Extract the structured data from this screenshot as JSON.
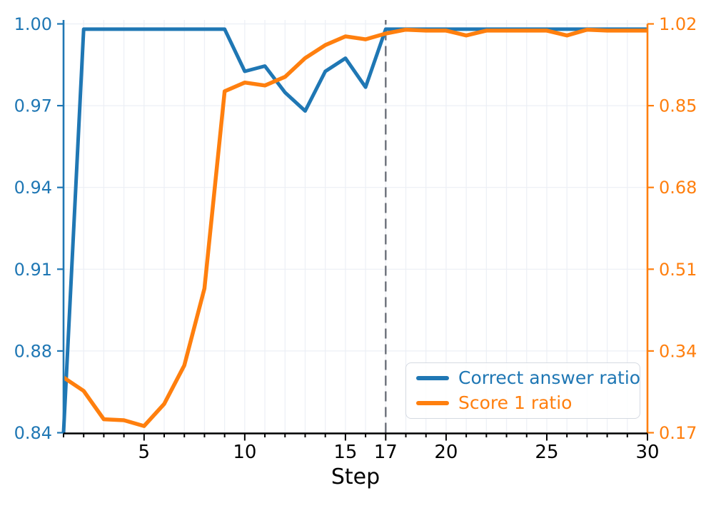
{
  "chart_data": {
    "type": "line",
    "title": "",
    "xlabel": "Step",
    "grid": true,
    "x": [
      1,
      2,
      3,
      4,
      5,
      6,
      7,
      8,
      9,
      10,
      11,
      12,
      13,
      14,
      15,
      16,
      17,
      18,
      19,
      20,
      21,
      22,
      23,
      24,
      25,
      26,
      27,
      28,
      29,
      30
    ],
    "xlim": [
      1,
      30
    ],
    "x_major_ticks": [
      5,
      10,
      15,
      17,
      20,
      25,
      30
    ],
    "x_tick_labels": [
      "5",
      "10",
      "15",
      "17",
      "20",
      "25",
      "30"
    ],
    "x_minor_tick_every": 1,
    "vline": {
      "x": 17,
      "style": "dashed",
      "color": "#6b7079"
    },
    "left_axis": {
      "ylim": [
        0.845,
        1.0
      ],
      "tick_labels_top_to_bottom": [
        "1.00",
        "0.97",
        "0.94",
        "0.91",
        "0.88",
        "0.84"
      ],
      "color": "#1f77b4"
    },
    "right_axis": {
      "ylim": [
        0.17,
        1.02
      ],
      "tick_labels_top_to_bottom": [
        "1.02",
        "0.85",
        "0.68",
        "0.51",
        "0.34",
        "0.17"
      ],
      "color": "#ff7f0e"
    },
    "legend": {
      "location": "lower right"
    },
    "series": [
      {
        "name": "Correct answer ratio",
        "color": "#1f77b4",
        "axis": "left",
        "values": [
          0.845,
          0.998,
          0.998,
          0.998,
          0.998,
          0.998,
          0.998,
          0.998,
          0.998,
          0.982,
          0.984,
          0.974,
          0.967,
          0.982,
          0.987,
          0.976,
          0.998,
          0.998,
          0.998,
          0.998,
          0.998,
          0.998,
          0.998,
          0.998,
          0.998,
          0.998,
          0.998,
          0.998,
          0.998,
          0.998
        ]
      },
      {
        "name": "Score 1 ratio",
        "color": "#ff7f0e",
        "axis": "right",
        "values": [
          0.285,
          0.257,
          0.198,
          0.196,
          0.184,
          0.23,
          0.31,
          0.47,
          0.88,
          0.898,
          0.892,
          0.91,
          0.949,
          0.976,
          0.994,
          0.988,
          1.0,
          1.008,
          1.006,
          1.006,
          0.996,
          1.006,
          1.006,
          1.006,
          1.006,
          0.996,
          1.008,
          1.006,
          1.006,
          1.006
        ]
      }
    ],
    "axis_text_color": "#000000",
    "grid_color": "#eceff5"
  }
}
